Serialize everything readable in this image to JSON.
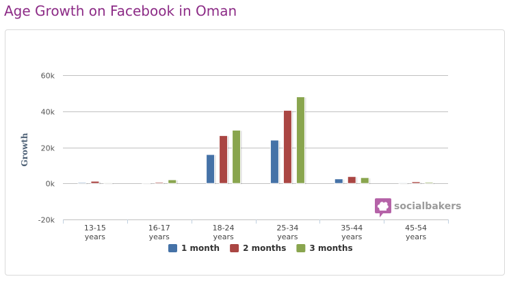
{
  "page": {
    "title": "Age Growth on Facebook in Oman"
  },
  "brand": {
    "name": "socialbakers",
    "logo_icon": "socialbakers-logo-icon",
    "color": "#b563a8"
  },
  "chart_data": {
    "type": "bar",
    "title": "",
    "xlabel": "",
    "ylabel": "Growth",
    "ylim": [
      -20000,
      60000
    ],
    "yticks": [
      {
        "value": -20000,
        "label": "-20k"
      },
      {
        "value": 0,
        "label": "0k"
      },
      {
        "value": 20000,
        "label": "20k"
      },
      {
        "value": 40000,
        "label": "40k"
      },
      {
        "value": 60000,
        "label": "60k"
      }
    ],
    "grid": true,
    "legend_placement": "bottom-center",
    "categories": [
      [
        "13-15",
        "years"
      ],
      [
        "16-17",
        "years"
      ],
      [
        "18-24",
        "years"
      ],
      [
        "25-34",
        "years"
      ],
      [
        "35-44",
        "years"
      ],
      [
        "45-54",
        "years"
      ]
    ],
    "series": [
      {
        "name": "1 month",
        "color": "#4572a7",
        "values": [
          500,
          300,
          16000,
          24000,
          2500,
          400
        ]
      },
      {
        "name": "2 months",
        "color": "#aa4643",
        "values": [
          1200,
          600,
          26500,
          40500,
          3800,
          900
        ]
      },
      {
        "name": "3 months",
        "color": "#89a54e",
        "values": [
          400,
          2000,
          29500,
          48000,
          3200,
          600
        ]
      }
    ]
  }
}
